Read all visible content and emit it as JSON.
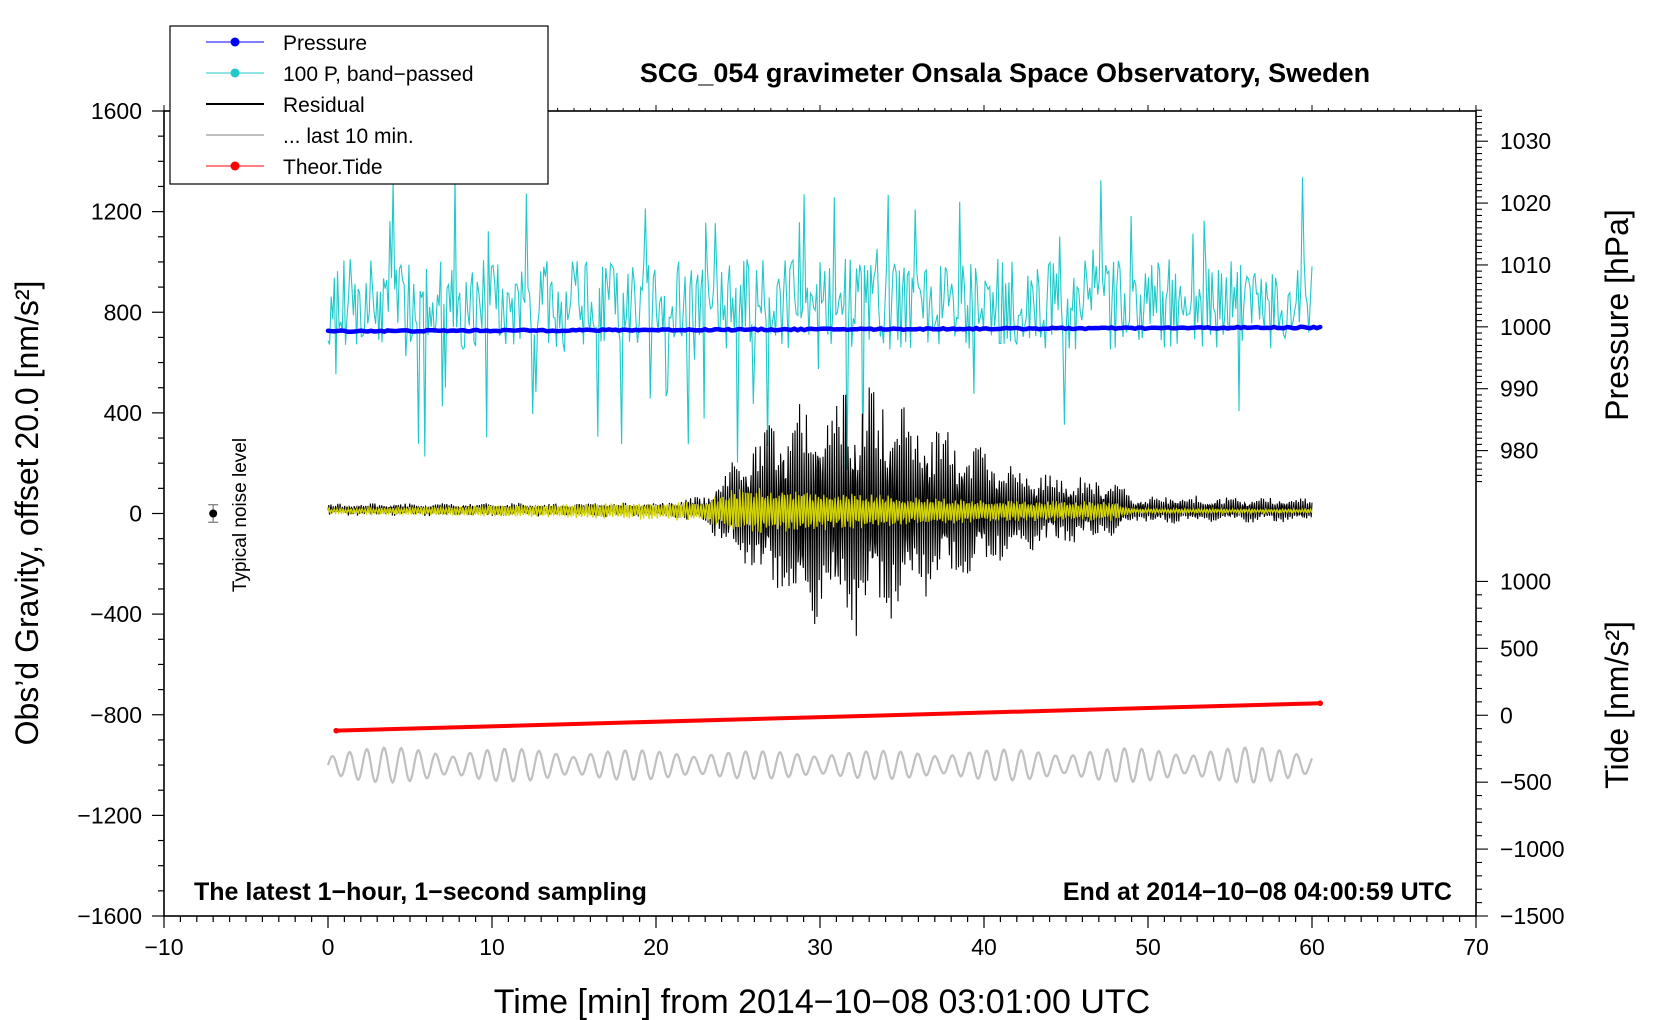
{
  "chart_data": {
    "type": "line",
    "title": "SCG_054 gravimeter Onsala Space Observatory, Sweden",
    "xlabel": "Time [min] from 2014−10−08 03:01:00 UTC",
    "ylabel_left": "Obs’d Gravity, offset 20.0 [nm/s²]",
    "ylabel_pressure": "Pressure [hPa]",
    "ylabel_tide": "Tide [nm/s²]",
    "xlim": [
      -10,
      70
    ],
    "ylim_left": [
      -1600,
      1600
    ],
    "xticks": [
      -10,
      0,
      10,
      20,
      30,
      40,
      50,
      60,
      70
    ],
    "xtick_labels": [
      "−10",
      "0",
      "10",
      "20",
      "30",
      "40",
      "50",
      "60",
      "70"
    ],
    "yticks_left": [
      1600,
      1200,
      800,
      400,
      0,
      -400,
      -800,
      -1200,
      -1600
    ],
    "ytick_labels_left": [
      "1600",
      "1200",
      "800",
      "400",
      "0",
      "−400",
      "−800",
      "−1200",
      "−1600"
    ],
    "pressure_axis": {
      "ticks": [
        1030,
        1020,
        1010,
        1000,
        990,
        980
      ],
      "labels": [
        "1030",
        "1020",
        "1010",
        "1000",
        "990",
        "980"
      ],
      "mapping": {
        "hPa": [
          980,
          1030
        ],
        "left_units": [
          250,
          1480
        ]
      }
    },
    "tide_axis": {
      "ticks": [
        1000,
        500,
        0,
        -500,
        -1000,
        -1500
      ],
      "labels": [
        "1000",
        "500",
        "0",
        "−500",
        "−1000",
        "−1500"
      ],
      "mapping": {
        "nm_s2": [
          -1500,
          1000
        ],
        "left_units": [
          -1600,
          -270
        ]
      }
    },
    "legend": {
      "position": "top-left",
      "entries": [
        {
          "label": "Pressure",
          "color": "#0000ff",
          "style": "line+dot"
        },
        {
          "label": "100 P, band−passed",
          "color": "#20c8c8",
          "style": "line+dot"
        },
        {
          "label": "Residual",
          "color": "#000000",
          "style": "line"
        },
        {
          "label": "... last 10 min.",
          "color": "#c0c0c0",
          "style": "line"
        },
        {
          "label": "Theor.Tide",
          "color": "#ff0000",
          "style": "line+dot"
        }
      ]
    },
    "series": [
      {
        "name": "Pressure",
        "color": "#0000ff",
        "unit": "hPa",
        "x": [
          0,
          60.5
        ],
        "values": [
          999.3,
          999.9
        ]
      },
      {
        "name": "100 P, band−passed",
        "color": "#20c8c8",
        "unit": "left_units",
        "baseline": 850,
        "amplitude_typical": 180,
        "x_range": [
          0,
          60
        ]
      },
      {
        "name": "Residual",
        "color": "#000000",
        "unit": "left_units",
        "baseline": 15,
        "envelope_x": [
          0,
          20,
          23,
          26,
          30,
          32,
          34,
          37,
          42,
          48,
          49,
          55,
          60
        ],
        "envelope_amp": [
          25,
          30,
          60,
          300,
          500,
          550,
          480,
          350,
          180,
          120,
          60,
          55,
          50
        ],
        "x_range": [
          0,
          60
        ]
      },
      {
        "name": "Residual filtered",
        "color": "#d4d400",
        "unit": "left_units",
        "baseline": 10,
        "envelope_x": [
          0,
          23,
          25,
          30,
          35,
          40,
          48,
          49,
          60
        ],
        "envelope_amp": [
          10,
          40,
          100,
          80,
          60,
          45,
          40,
          10,
          8
        ],
        "x_range": [
          0,
          60
        ]
      },
      {
        "name": "... last 10 min.",
        "color": "#c0c0c0",
        "unit": "left_units",
        "baseline": -1000,
        "amplitude_typical": 70,
        "x_range": [
          0,
          60
        ]
      },
      {
        "name": "Theor.Tide",
        "color": "#ff0000",
        "unit": "nm/s²",
        "x": [
          0.5,
          60.5
        ],
        "values": [
          -115,
          90
        ]
      }
    ],
    "noise_level": {
      "label": "Typical noise level",
      "x": -7,
      "value": 0,
      "error": 35
    },
    "annotations": {
      "left": "The latest 1−hour, 1−second sampling",
      "right": "End at 2014−10−08 04:00:59 UTC"
    }
  }
}
